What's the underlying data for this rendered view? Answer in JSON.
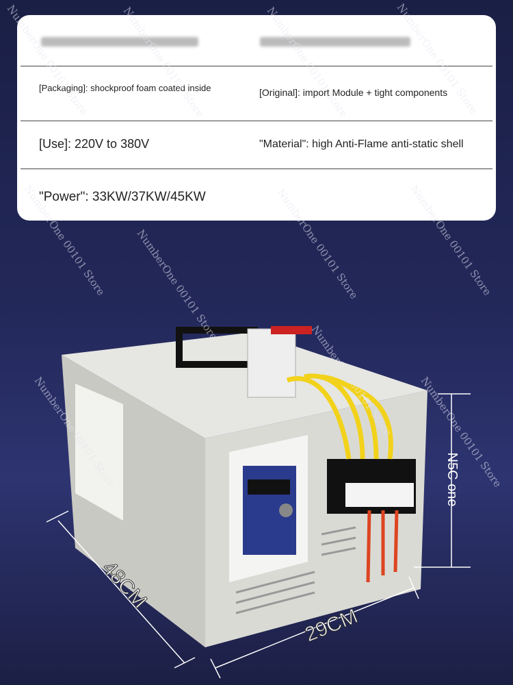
{
  "spec_table": {
    "rows": [
      [
        "[Packaging]: shockproof foam coated inside",
        "[Original]: import Module + tight components"
      ],
      [
        "[Use]: 220V to 380V",
        "\"Material\": high Anti-Flame anti-static shell"
      ],
      [
        "\"Power\": 33KW/37KW/45KW"
      ]
    ]
  },
  "dimensions": {
    "length": "48CM",
    "width": "29CM",
    "height": "N5C one"
  },
  "watermark": "NumberOne 00101 Store"
}
